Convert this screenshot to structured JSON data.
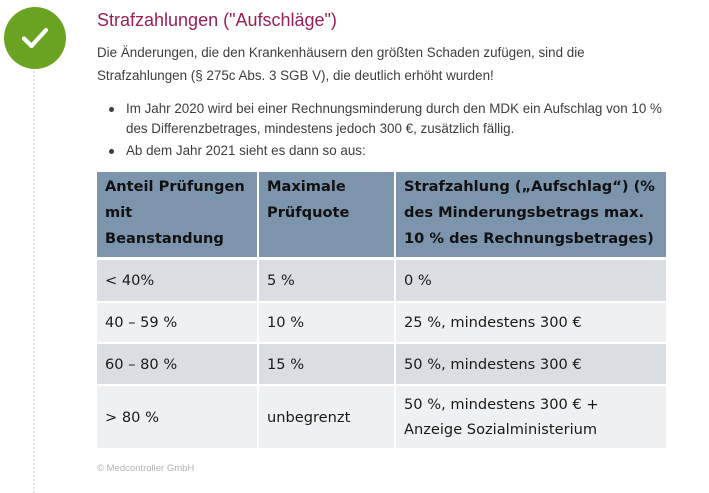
{
  "section": {
    "status_icon": "check-icon",
    "status_color": "#6aa321",
    "title": "Strafzahlungen (\"Aufschläge\")",
    "title_color": "#9b1d55",
    "intro": "Die Änderungen, die den Krankenhäusern den größten Schaden zufügen, sind die Strafzahlungen (§ 275c Abs. 3 SGB V), die deutlich erhöht wurden!",
    "bullets": [
      "Im Jahr 2020 wird bei einer Rechnungsminderung durch den MDK ein Aufschlag von 10 % des Differenzbetrages, mindestens jedoch 300 €, zusätzlich fällig.",
      "Ab dem Jahr 2021 sieht es dann so aus:"
    ]
  },
  "table": {
    "header_color": "#7d94ad",
    "headers": [
      "Anteil Prüfungen mit Beanstandung",
      "Maximale Prüfquote",
      "Strafzahlung („Aufschlag“) (% des Minderungsbetrags max. 10 % des Rechnungsbetrages)"
    ],
    "rows": [
      [
        "< 40%",
        "5 %",
        "0 %"
      ],
      [
        "40 – 59 %",
        "10 %",
        "25 %, mindestens 300 €"
      ],
      [
        "60 – 80 %",
        "15 %",
        "50 %, mindestens 300 €"
      ],
      [
        "> 80 %",
        "unbegrenzt",
        "50 %, mindestens 300 € + Anzeige Sozialministerium"
      ]
    ]
  },
  "footer": {
    "copyright": "© Medcontroller GmbH"
  }
}
